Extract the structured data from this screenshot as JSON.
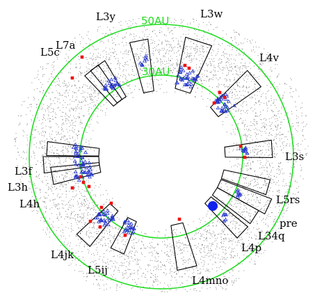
{
  "colors": {
    "background": "#ffffff",
    "ring": "#22dd22",
    "scatter": "#6b6b6b",
    "wedge": "#000000",
    "triangle": "#2233cc",
    "detection": "#ee1111",
    "sun_marker": "#1122ee"
  },
  "rings": [
    {
      "label": "50AU"
    },
    {
      "label": "30AU"
    }
  ],
  "fields": [
    {
      "label": "L3y"
    },
    {
      "label": "L3w"
    },
    {
      "label": "L5c"
    },
    {
      "label": "L7a"
    },
    {
      "label": "L4v"
    },
    {
      "label": "L3s"
    },
    {
      "label": "L3f"
    },
    {
      "label": "L3h"
    },
    {
      "label": "L4h"
    },
    {
      "label": "L5rs"
    },
    {
      "label": "pre"
    },
    {
      "label": "L34q"
    },
    {
      "label": "L4p"
    },
    {
      "label": "L4jk"
    },
    {
      "label": "L5ij"
    },
    {
      "label": "L4mno"
    }
  ],
  "markers": {
    "sun_icon": "filled-circle",
    "object_icon": "open-triangle",
    "detection_icon": "filled-square"
  }
}
